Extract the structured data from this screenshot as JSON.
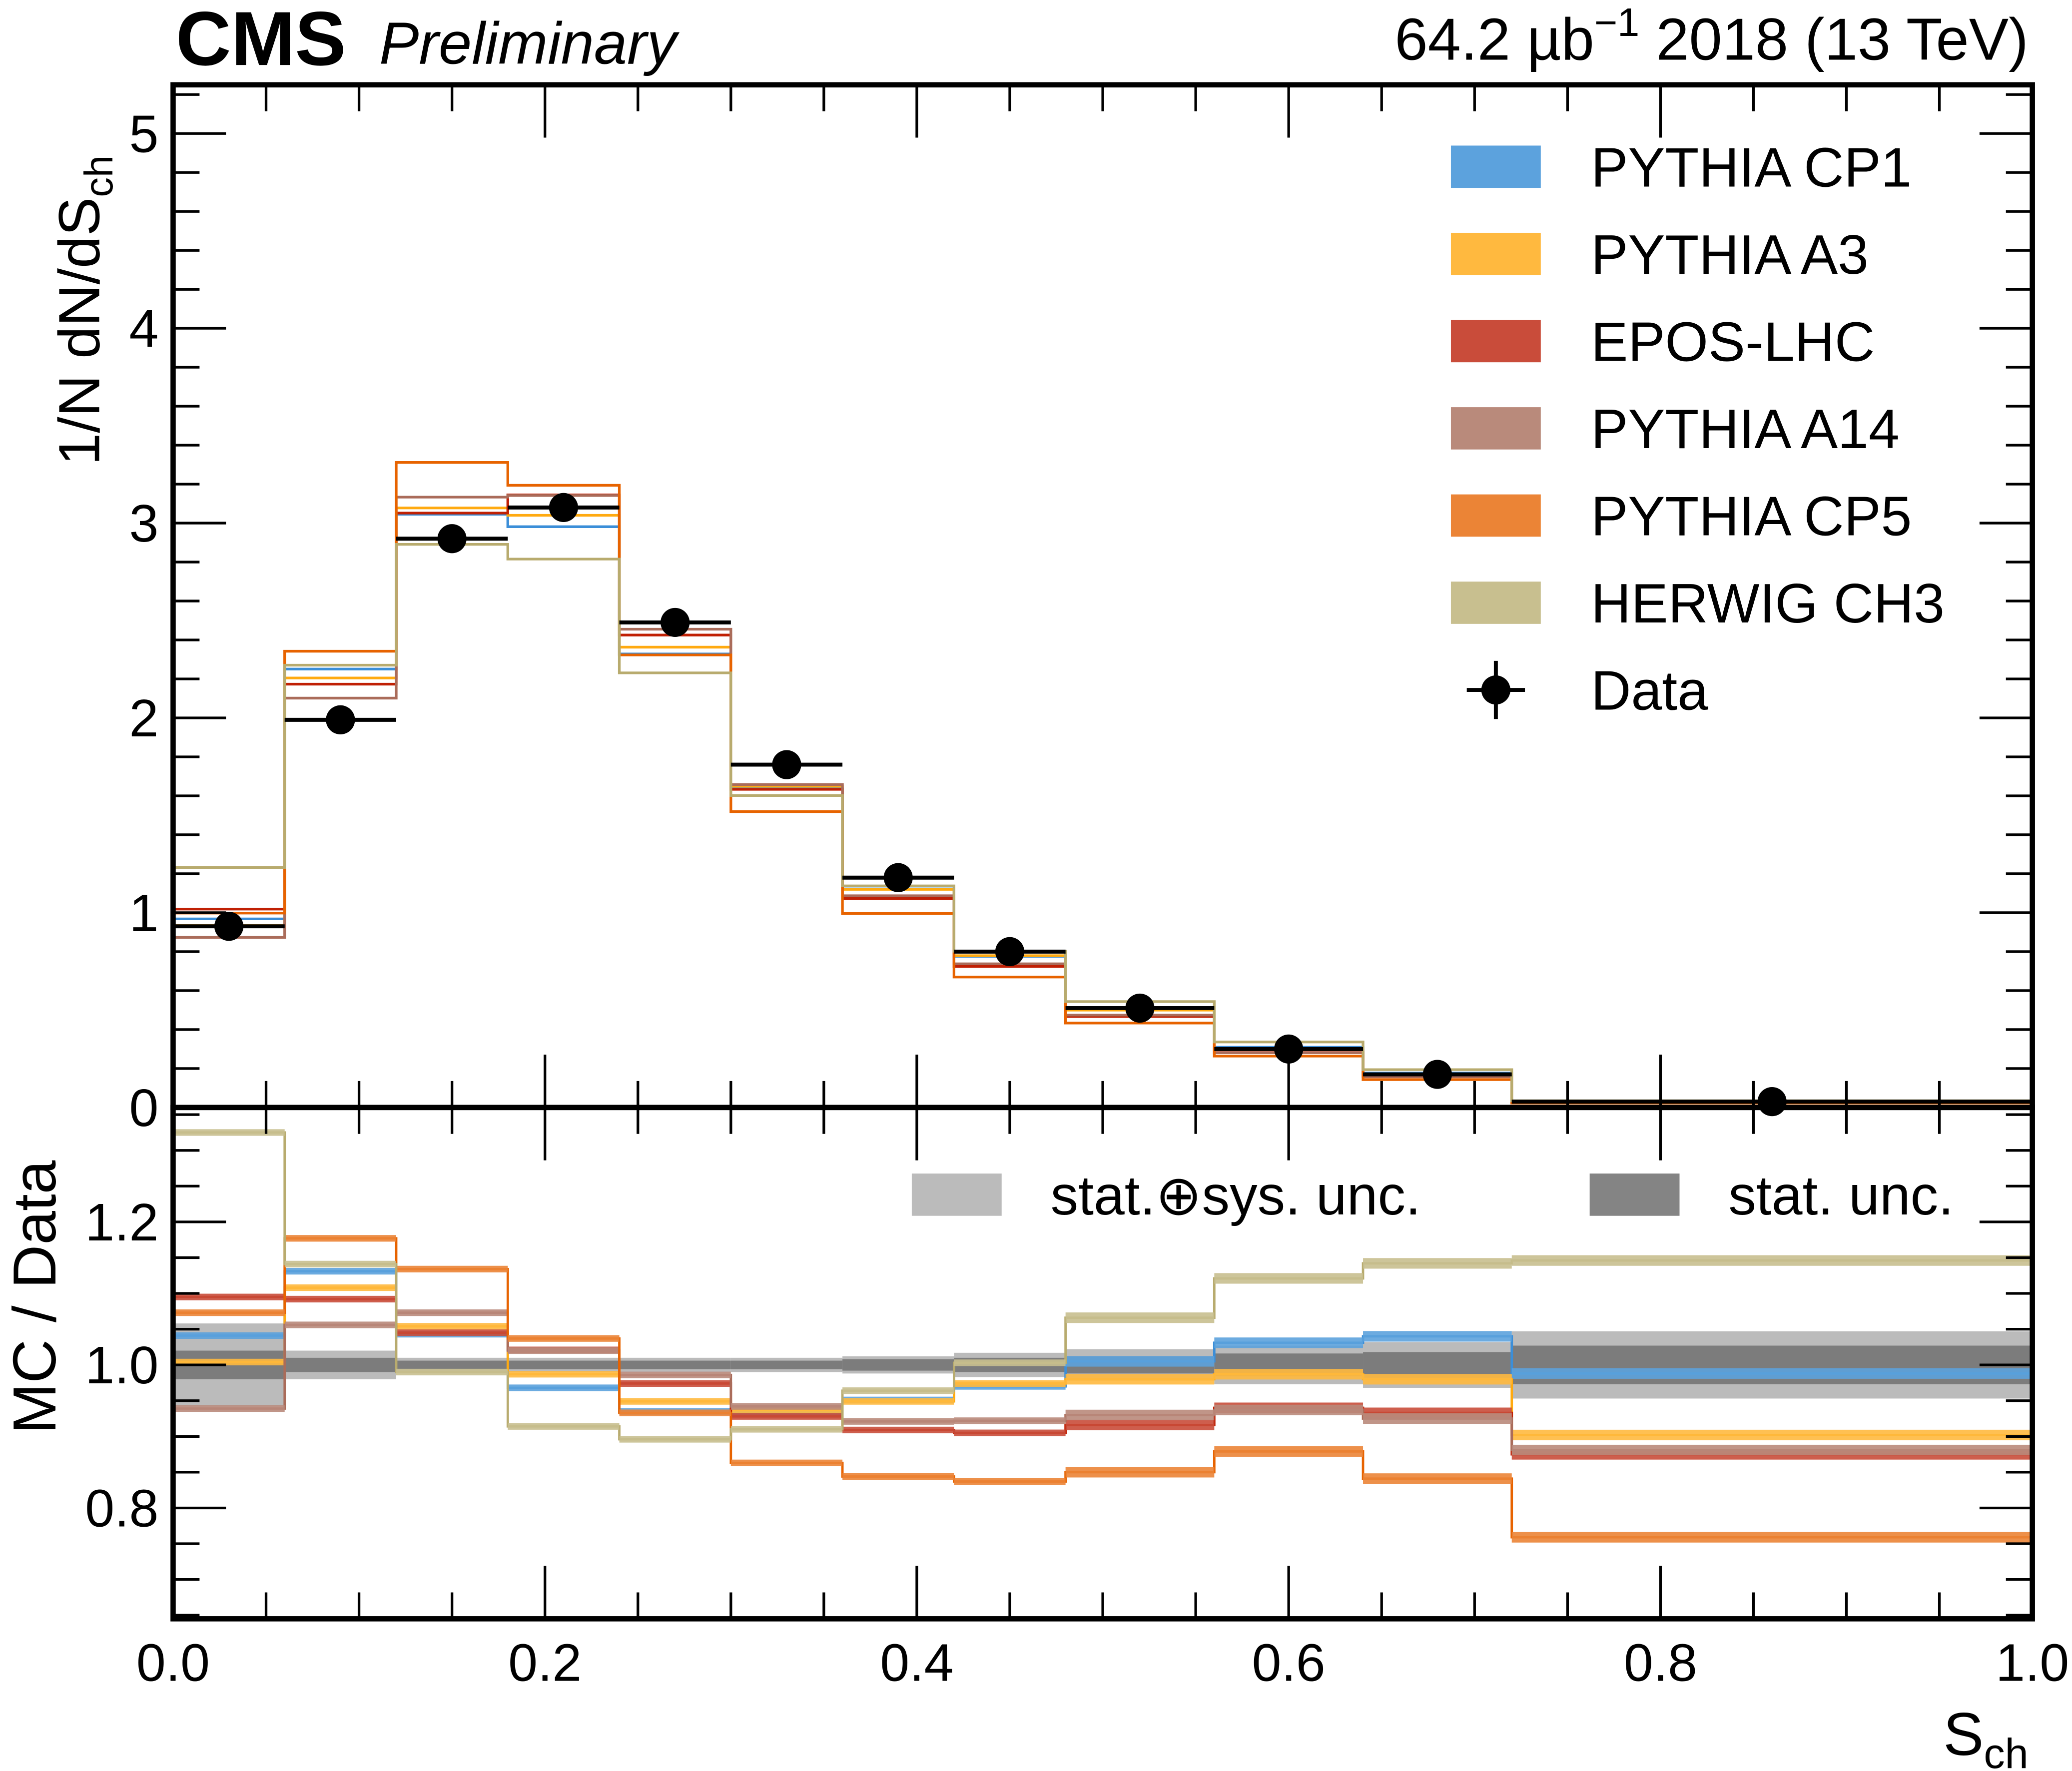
{
  "header": {
    "experiment": "CMS",
    "status": "Preliminary",
    "lumi": "64.2 µb",
    "lumi_exp": "−1",
    "conditions": " 2018 (13 TeV)"
  },
  "chart_data": {
    "type": "histogram-with-ratio",
    "xlabel": "S",
    "xlabel_sub": "ch",
    "ylabel": "1/N dN/dS",
    "ylabel_sub": "ch",
    "ratio_ylabel": "MC / Data",
    "xlim": [
      0,
      1
    ],
    "ylim": [
      0,
      5.25
    ],
    "ratio_ylim": [
      0.645,
      1.36
    ],
    "x_ticks": [
      "0.0",
      "0.2",
      "0.4",
      "0.6",
      "0.8",
      "1.0"
    ],
    "y_ticks": [
      "0",
      "1",
      "2",
      "3",
      "4",
      "5"
    ],
    "ratio_y_ticks": [
      "0.8",
      "1.0",
      "1.2"
    ],
    "bin_edges": [
      0,
      0.06,
      0.12,
      0.18,
      0.24,
      0.3,
      0.36,
      0.42,
      0.48,
      0.56,
      0.64,
      0.72,
      1.0
    ],
    "data": {
      "name": "Data",
      "values": [
        0.93,
        1.99,
        2.92,
        3.08,
        2.49,
        1.76,
        1.18,
        0.8,
        0.51,
        0.3,
        0.17,
        0.03
      ],
      "stat_unc_ratio": [
        0.02,
        0.01,
        0.006,
        0.006,
        0.006,
        0.006,
        0.008,
        0.01,
        0.012,
        0.016,
        0.018,
        0.027
      ],
      "total_unc_ratio": [
        0.058,
        0.02,
        0.01,
        0.01,
        0.01,
        0.01,
        0.012,
        0.017,
        0.022,
        0.027,
        0.032,
        0.047
      ]
    },
    "series": [
      {
        "name": "PYTHIA CP1",
        "color": "#5ca2dd",
        "line": "#3b8ed8",
        "ratio": [
          1.041,
          1.131,
          1.043,
          0.968,
          0.935,
          0.932,
          0.951,
          0.97,
          1.005,
          1.031,
          1.04,
          0.988
        ]
      },
      {
        "name": "PYTHIA A3",
        "color": "#ffb93f",
        "line": "#ffaa10",
        "ratio": [
          1.004,
          1.108,
          1.054,
          0.987,
          0.949,
          0.937,
          0.949,
          0.974,
          0.98,
          0.987,
          0.98,
          0.902
        ]
      },
      {
        "name": "EPOS-LHC",
        "color": "#c94c3a",
        "line": "#c02004",
        "ratio": [
          1.095,
          1.092,
          1.045,
          1.021,
          0.974,
          0.928,
          0.909,
          0.905,
          0.916,
          0.94,
          0.933,
          0.875
        ]
      },
      {
        "name": "PYTHIA A14",
        "color": "#b98a7b",
        "line": "#aa6c5a",
        "ratio": [
          0.939,
          1.056,
          1.073,
          1.02,
          0.986,
          0.942,
          0.921,
          0.922,
          0.93,
          0.937,
          0.925,
          0.881
        ]
      },
      {
        "name": "PYTHIA CP5",
        "color": "#eb8436",
        "line": "#e76300",
        "ratio": [
          1.073,
          1.177,
          1.134,
          1.037,
          0.933,
          0.863,
          0.844,
          0.837,
          0.85,
          0.879,
          0.841,
          0.759
        ]
      },
      {
        "name": "HERWIG CH3",
        "color": "#c8bf8f",
        "line": "#b8ab6e",
        "ratio": [
          1.325,
          1.141,
          0.99,
          0.914,
          0.896,
          0.91,
          0.964,
          1.003,
          1.066,
          1.121,
          1.142,
          1.146
        ]
      }
    ],
    "ratio_legend": [
      {
        "label": "stat.⊕sys. unc.",
        "color": "#bbbbbb"
      },
      {
        "label": "stat. unc.",
        "color": "#848484"
      }
    ],
    "legend_placement": "top-right"
  }
}
